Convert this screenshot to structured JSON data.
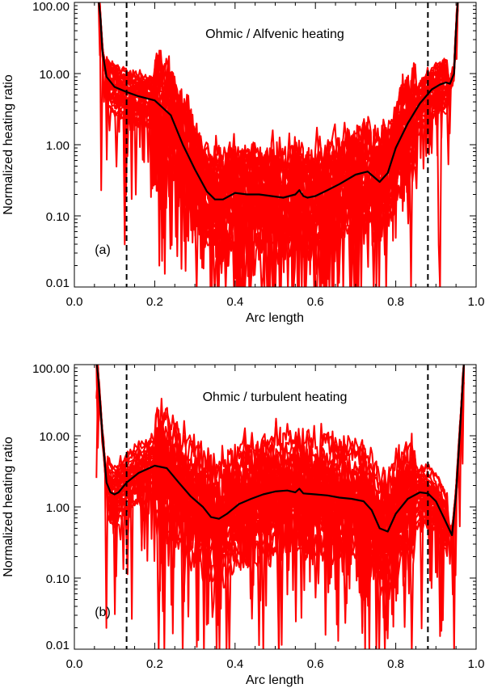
{
  "chart_data": [
    {
      "type": "line",
      "panel_label": "(a)",
      "title": "Ohmic / Alfvenic heating",
      "xlabel": "Arc length",
      "ylabel": "Normalized heating ratio",
      "xscale": "linear",
      "yscale": "log",
      "xlim": [
        0.0,
        1.0
      ],
      "ylim": [
        0.01,
        100.0
      ],
      "xticks": [
        0.0,
        0.2,
        0.4,
        0.6,
        0.8,
        1.0
      ],
      "xtick_labels": [
        "0.0",
        "0.2",
        "0.4",
        "0.6",
        "0.8",
        "1.0"
      ],
      "yticks": [
        0.01,
        0.1,
        1.0,
        10.0,
        100.0
      ],
      "ytick_labels": [
        "0.01",
        "0.10",
        "1.00",
        "10.00",
        "100.00"
      ],
      "vlines": [
        0.13,
        0.88
      ],
      "vline_style": "dashed",
      "mean_curve_color": "#000000",
      "ensemble_color": "#ff0000",
      "ensemble_count": 30,
      "mean_curve": {
        "x": [
          0.06,
          0.065,
          0.07,
          0.08,
          0.1,
          0.13,
          0.16,
          0.2,
          0.24,
          0.27,
          0.3,
          0.33,
          0.35,
          0.37,
          0.4,
          0.43,
          0.46,
          0.49,
          0.52,
          0.55,
          0.56,
          0.57,
          0.58,
          0.6,
          0.63,
          0.66,
          0.7,
          0.73,
          0.76,
          0.78,
          0.8,
          0.83,
          0.86,
          0.89,
          0.91,
          0.925,
          0.935,
          0.945,
          0.95,
          0.955
        ],
        "y": [
          150,
          60,
          20,
          9,
          6.5,
          5.5,
          4.8,
          4.2,
          2.6,
          1.0,
          0.45,
          0.22,
          0.17,
          0.17,
          0.21,
          0.2,
          0.2,
          0.19,
          0.18,
          0.2,
          0.23,
          0.19,
          0.18,
          0.19,
          0.23,
          0.28,
          0.38,
          0.42,
          0.3,
          0.4,
          0.9,
          2.0,
          3.8,
          6.0,
          7.0,
          7.5,
          7.2,
          10,
          40,
          150
        ]
      }
    },
    {
      "type": "line",
      "panel_label": "(b)",
      "title": "Ohmic / turbulent heating",
      "xlabel": "Arc length",
      "ylabel": "Normalized heating ratio",
      "xscale": "linear",
      "yscale": "log",
      "xlim": [
        0.0,
        1.0
      ],
      "ylim": [
        0.01,
        100.0
      ],
      "xticks": [
        0.0,
        0.2,
        0.4,
        0.6,
        0.8,
        1.0
      ],
      "xtick_labels": [
        "0.0",
        "0.2",
        "0.4",
        "0.6",
        "0.8",
        "1.0"
      ],
      "yticks": [
        0.01,
        0.1,
        1.0,
        10.0,
        100.0
      ],
      "ytick_labels": [
        "0.01",
        "0.10",
        "1.00",
        "10.00",
        "100.00"
      ],
      "vlines": [
        0.13,
        0.88
      ],
      "vline_style": "dashed",
      "mean_curve_color": "#000000",
      "ensemble_color": "#ff0000",
      "ensemble_count": 30,
      "mean_curve": {
        "x": [
          0.055,
          0.06,
          0.07,
          0.08,
          0.09,
          0.1,
          0.11,
          0.13,
          0.16,
          0.2,
          0.23,
          0.26,
          0.29,
          0.32,
          0.34,
          0.36,
          0.38,
          0.41,
          0.44,
          0.47,
          0.5,
          0.53,
          0.55,
          0.56,
          0.57,
          0.6,
          0.63,
          0.66,
          0.69,
          0.72,
          0.74,
          0.76,
          0.78,
          0.8,
          0.83,
          0.86,
          0.88,
          0.9,
          0.92,
          0.94,
          0.95,
          0.96,
          0.97
        ],
        "y": [
          150,
          60,
          10,
          2.2,
          1.6,
          1.5,
          1.6,
          2.2,
          3.0,
          3.8,
          3.5,
          2.2,
          1.4,
          1.0,
          0.72,
          0.68,
          0.8,
          1.1,
          1.3,
          1.5,
          1.65,
          1.7,
          1.6,
          1.8,
          1.55,
          1.5,
          1.45,
          1.35,
          1.3,
          1.2,
          0.9,
          0.5,
          0.45,
          0.8,
          1.3,
          1.6,
          1.55,
          1.2,
          0.7,
          0.4,
          1.5,
          12,
          120
        ]
      }
    }
  ]
}
